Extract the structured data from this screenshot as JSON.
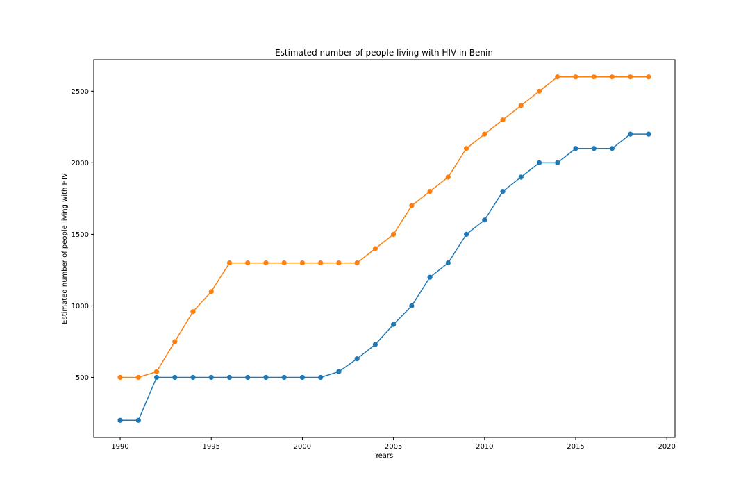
{
  "chart_data": {
    "type": "line",
    "title": "Estimated number of people living with HIV in Benin",
    "xlabel": "Years",
    "ylabel": "Estimated number of people living with HIV",
    "x": [
      1990,
      1991,
      1992,
      1993,
      1994,
      1995,
      1996,
      1997,
      1998,
      1999,
      2000,
      2001,
      2002,
      2003,
      2004,
      2005,
      2006,
      2007,
      2008,
      2009,
      2010,
      2011,
      2012,
      2013,
      2014,
      2015,
      2016,
      2017,
      2018,
      2019
    ],
    "xlim": [
      1988.55,
      2020.45
    ],
    "ylim": [
      80,
      2720
    ],
    "xticks": [
      1990,
      1995,
      2000,
      2005,
      2010,
      2015,
      2020
    ],
    "yticks": [
      500,
      1000,
      1500,
      2000,
      2500
    ],
    "grid": false,
    "legend": "none",
    "series": [
      {
        "color": "#1f77b4",
        "values": [
          200,
          200,
          500,
          500,
          500,
          500,
          500,
          500,
          500,
          500,
          500,
          500,
          540,
          630,
          730,
          870,
          1000,
          1200,
          1300,
          1500,
          1600,
          1800,
          1900,
          2000,
          2000,
          2100,
          2100,
          2100,
          2200,
          2200
        ]
      },
      {
        "color": "#ff7f0e",
        "values": [
          500,
          500,
          540,
          750,
          960,
          1100,
          1300,
          1300,
          1300,
          1300,
          1300,
          1300,
          1300,
          1300,
          1400,
          1500,
          1700,
          1800,
          1900,
          2100,
          2200,
          2300,
          2400,
          2500,
          2600,
          2600,
          2600,
          2600,
          2600,
          2600
        ]
      }
    ]
  }
}
